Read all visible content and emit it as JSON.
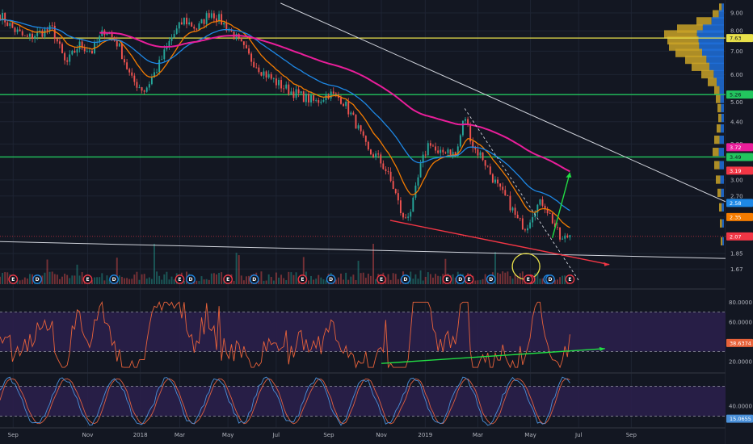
{
  "colors": {
    "background": "#131722",
    "grid": "#1e2433",
    "candle_up": "#26a69a",
    "candle_down": "#ef5350",
    "ema_fast": "#f57c00",
    "ema_mid": "#1e88e5",
    "ema_slow": "#e91e9a",
    "hline_yellow": "#e8e04a",
    "hline_green": "#22c55e",
    "trend_white": "#d1d4dc",
    "trend_red": "#f23645",
    "arrow_green": "#22dd44",
    "rsi_band": "#2a1f4a",
    "rsi_line": "#e8623a",
    "stoch_k": "#4a90d9",
    "stoch_d": "#e06040",
    "vp_yellow": "#c9a227",
    "vp_blue": "#1e6fd9",
    "earn_badge": "#f23645",
    "div_badge": "#1e88e5"
  },
  "chart_data": [
    {
      "type": "candlestick",
      "panel": "price",
      "y_ticks": [
        "9.00",
        "8.00",
        "7.00",
        "6.00",
        "5.00",
        "4.40",
        "3.80",
        "3.00",
        "2.70",
        "2.35",
        "1.85",
        "1.67"
      ],
      "y_tick_values": [
        9.0,
        8.0,
        7.0,
        6.0,
        5.0,
        4.4,
        3.8,
        3.0,
        2.7,
        2.35,
        1.85,
        1.67
      ],
      "ylim_log": [
        1.48,
        9.8
      ],
      "x_ticks": [
        "Sep",
        "Nov",
        "2018",
        "Mar",
        "May",
        "Jul",
        "Sep",
        "Nov",
        "2019",
        "Mar",
        "May",
        "Jul",
        "Sep"
      ],
      "close_path": [
        [
          0,
          8.9
        ],
        [
          0.03,
          8.1
        ],
        [
          0.06,
          7.6
        ],
        [
          0.09,
          7.9
        ],
        [
          0.12,
          8.1
        ],
        [
          0.15,
          6.4
        ],
        [
          0.18,
          7.3
        ],
        [
          0.21,
          7.0
        ],
        [
          0.24,
          8.1
        ],
        [
          0.27,
          7.3
        ],
        [
          0.3,
          5.8
        ],
        [
          0.33,
          5.4
        ],
        [
          0.36,
          6.3
        ],
        [
          0.39,
          7.6
        ],
        [
          0.42,
          8.6
        ],
        [
          0.45,
          8.1
        ],
        [
          0.48,
          9.1
        ],
        [
          0.51,
          8.4
        ],
        [
          0.54,
          7.6
        ],
        [
          0.57,
          6.7
        ],
        [
          0.6,
          6.1
        ],
        [
          0.63,
          5.7
        ],
        [
          0.66,
          5.4
        ],
        [
          0.69,
          5.2
        ],
        [
          0.72,
          5.0
        ],
        [
          0.75,
          5.3
        ],
        [
          0.78,
          5.1
        ],
        [
          0.81,
          4.4
        ],
        [
          0.84,
          3.6
        ],
        [
          0.86,
          3.5
        ],
        [
          0.88,
          3.2
        ],
        [
          0.9,
          2.8
        ],
        [
          0.92,
          2.3
        ],
        [
          0.94,
          2.5
        ],
        [
          0.96,
          3.3
        ],
        [
          0.98,
          3.9
        ],
        [
          1.0,
          3.5
        ],
        [
          1.02,
          3.7
        ],
        [
          1.04,
          3.5
        ],
        [
          1.06,
          4.6
        ],
        [
          1.08,
          3.7
        ],
        [
          1.1,
          3.5
        ],
        [
          1.12,
          3.1
        ],
        [
          1.14,
          2.8
        ],
        [
          1.16,
          2.6
        ],
        [
          1.18,
          2.3
        ],
        [
          1.2,
          2.2
        ],
        [
          1.22,
          2.5
        ],
        [
          1.24,
          2.6
        ],
        [
          1.26,
          2.3
        ],
        [
          1.28,
          2.0
        ],
        [
          1.3,
          2.1
        ]
      ],
      "series": [
        {
          "name": "",
          "kind": "ema_fast"
        },
        {
          "name": "",
          "kind": "ema_mid"
        },
        {
          "name": "",
          "kind": "ema_slow"
        }
      ],
      "price_tags": [
        {
          "label": "7.63",
          "value": 7.63,
          "color": "#e8e04a",
          "text_color": "#131722"
        },
        {
          "label": "5.26",
          "value": 5.26,
          "color": "#22c55e",
          "text_color": "#131722"
        },
        {
          "label": "3.72",
          "value": 3.72,
          "color": "#e91e9a",
          "text_color": "#ffffff"
        },
        {
          "label": "3.49",
          "value": 3.49,
          "color": "#22c55e",
          "text_color": "#131722"
        },
        {
          "label": "3.19",
          "value": 3.19,
          "color": "#f23645",
          "text_color": "#ffffff"
        },
        {
          "label": "2.58",
          "value": 2.58,
          "color": "#1e88e5",
          "text_color": "#ffffff"
        },
        {
          "label": "2.35",
          "value": 2.35,
          "color": "#f57c00",
          "text_color": "#ffffff"
        },
        {
          "label": "2.07",
          "value": 2.07,
          "color": "#f23645",
          "text_color": "#ffffff"
        }
      ],
      "horizontal_levels": [
        {
          "value": 7.63,
          "color": "#e8e04a"
        },
        {
          "value": 5.26,
          "color": "#22c55e"
        },
        {
          "value": 3.49,
          "color": "#22c55e"
        }
      ],
      "events": [
        {
          "label": "E",
          "kind": "earnings"
        },
        {
          "label": "D",
          "kind": "dividend"
        },
        {
          "label": "E",
          "kind": "earnings"
        },
        {
          "label": "D",
          "kind": "dividend"
        },
        {
          "label": "E",
          "kind": "earnings"
        },
        {
          "label": "D",
          "kind": "dividend"
        },
        {
          "label": "E",
          "kind": "earnings"
        },
        {
          "label": "D",
          "kind": "dividend"
        },
        {
          "label": "E",
          "kind": "earnings"
        },
        {
          "label": "D",
          "kind": "dividend"
        },
        {
          "label": "E",
          "kind": "earnings"
        },
        {
          "label": "D",
          "kind": "dividend"
        },
        {
          "label": "E",
          "kind": "earnings"
        },
        {
          "label": "D",
          "kind": "dividend"
        },
        {
          "label": "E",
          "kind": "earnings"
        },
        {
          "label": "D",
          "kind": "dividend"
        },
        {
          "label": "E",
          "kind": "earnings"
        },
        {
          "label": "E",
          "kind": "earnings"
        },
        {
          "label": "D",
          "kind": "dividend"
        },
        {
          "label": "E",
          "kind": "earnings"
        },
        {
          "label": "D",
          "kind": "dividend"
        }
      ]
    },
    {
      "type": "line",
      "panel": "rsi",
      "y_ticks": [
        "80.0000",
        "60.0000",
        "20.0000"
      ],
      "y_tick_values": [
        80,
        60,
        20
      ],
      "ylim": [
        10,
        90
      ],
      "band": [
        30,
        70
      ],
      "last_value_label": "38.6374",
      "last_value": 38.6374
    },
    {
      "type": "line",
      "panel": "stochastic_rsi",
      "y_ticks": [
        "40.0000"
      ],
      "y_tick_values": [
        40
      ],
      "ylim": [
        0,
        100
      ],
      "band": [
        20,
        80
      ],
      "last_value_label": "15.0655",
      "last_value": 15.0655
    }
  ]
}
